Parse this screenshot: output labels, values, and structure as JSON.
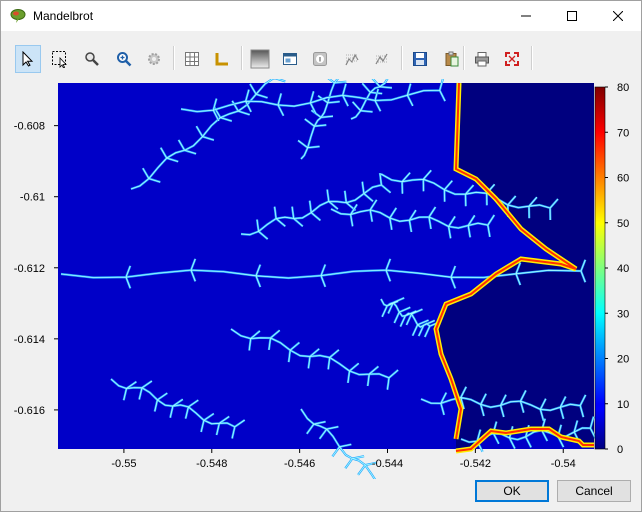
{
  "window": {
    "title": "Mandelbrot"
  },
  "toolbar": {
    "items": [
      {
        "icon": "select-arrow-icon",
        "active": true
      },
      {
        "icon": "zoom-rectangle-icon",
        "active": false
      },
      {
        "icon": "magnifier-icon",
        "active": false
      },
      {
        "icon": "zoom-in-icon",
        "active": false
      },
      {
        "icon": "settings-gear-icon",
        "active": false
      },
      {
        "icon": "grid-icon",
        "active": false
      },
      {
        "icon": "axes-icon",
        "active": false
      },
      {
        "icon": "gradient-icon",
        "active": false
      },
      {
        "icon": "image-window-icon",
        "active": false
      },
      {
        "icon": "info-icon",
        "active": false
      },
      {
        "icon": "contour-icon",
        "active": false
      },
      {
        "icon": "contour-alt-icon",
        "active": false
      },
      {
        "icon": "save-icon",
        "active": false
      },
      {
        "icon": "copy-clipboard-icon",
        "active": false
      },
      {
        "icon": "print-icon",
        "active": false
      },
      {
        "icon": "fullscreen-icon",
        "active": false
      }
    ]
  },
  "chart_data": {
    "type": "heatmap",
    "x_ticks": [
      "-0.55",
      "-0.548",
      "-0.546",
      "-0.544",
      "-0.542",
      "-0.54"
    ],
    "y_ticks": [
      "-0.608",
      "-0.61",
      "-0.612",
      "-0.614",
      "-0.616"
    ],
    "colorbar_ticks": [
      "80",
      "70",
      "60",
      "50",
      "40",
      "30",
      "20",
      "10",
      "0"
    ],
    "xlim": [
      -0.5515,
      -0.5393
    ],
    "ylim": [
      -0.6171,
      -0.6068
    ],
    "clim": [
      0,
      80
    ],
    "colormap": "jet"
  },
  "buttons": {
    "ok": "OK",
    "cancel": "Cancel"
  },
  "colors": {
    "accent": "#0078d7",
    "plot_background": "#0000c8",
    "set_interior": "#00007f"
  }
}
